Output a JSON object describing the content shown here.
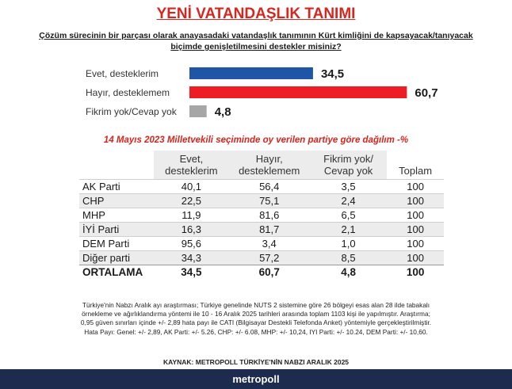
{
  "title": "YENİ VATANDAŞLIK TANIMI",
  "question": "Çözüm sürecinin bir parçası olarak anayasadaki vatandaşlık tanımının Kürt kimliğini de kapsayacak/tanıyacak biçimde genişletilmesini destekler misiniz?",
  "chart_data": {
    "type": "bar",
    "orientation": "horizontal",
    "categories": [
      "Evet, desteklerim",
      "Hayır, desteklemem",
      "Fikrim yok/Cevap yok"
    ],
    "values": [
      34.5,
      60.7,
      4.8
    ],
    "value_labels": [
      "34,5",
      "60,7",
      "4,8"
    ],
    "colors": [
      "#1f55a6",
      "#ee1c24",
      "#a6a6a6"
    ],
    "xlim": [
      0,
      100
    ],
    "grid": false,
    "legend": "none"
  },
  "breakdown": {
    "subtitle": "14 Mayıs 2023 Milletvekili seçiminde oy verilen partiye göre dağılım -%",
    "headers": [
      "Evet, desteklerim",
      "Hayır, desteklemem",
      "Fikrim yok/ Cevap yok",
      "Toplam"
    ],
    "rows": [
      {
        "party": "AK Parti",
        "values": [
          "40,1",
          "56,4",
          "3,5",
          "100"
        ]
      },
      {
        "party": "CHP",
        "values": [
          "22,5",
          "75,1",
          "2,4",
          "100"
        ]
      },
      {
        "party": "MHP",
        "values": [
          "11,9",
          "81,6",
          "6,5",
          "100"
        ]
      },
      {
        "party": "İYİ Parti",
        "values": [
          "16,3",
          "81,7",
          "2,1",
          "100"
        ]
      },
      {
        "party": "DEM Parti",
        "values": [
          "95,6",
          "3,4",
          "1,0",
          "100"
        ]
      },
      {
        "party": "Diğer parti",
        "values": [
          "34,3",
          "57,2",
          "8,5",
          "100"
        ]
      }
    ],
    "average": {
      "party": "ORTALAMA",
      "values": [
        "34,5",
        "60,7",
        "4,8",
        "100"
      ]
    }
  },
  "methodology": "Türkiye'nin Nabzı Aralık ayı araştırması; Türkiye genelinde NUTS 2 sistemine göre 26 bölgeyi esas alan 28 ilde tabakalı örnekleme ve ağırlıklandırma yöntemi ile 10 - 16 Aralık 2025 tarihleri arasında toplam 1103 kişi ile yapılmıştır. Araştırma; 0,95 güven sınırları içinde +/- 2,89 hata payı ile CATI (Bilgisayar Destekli Telefonda Anket) yöntemiyle gerçekleştirilmiştir. Hata Payı: Genel: +/- 2,89, AK Parti: +/- 5.26, CHP: +/- 6.08, MHP: +/- 10,24, IYI Parti: +/- 10.24, DEM Parti: +/- 10,60.",
  "source": "KAYNAK: METROPOLL TÜRKİYE'NİN NABZI ARALIK 2025",
  "brand": "metropoll"
}
